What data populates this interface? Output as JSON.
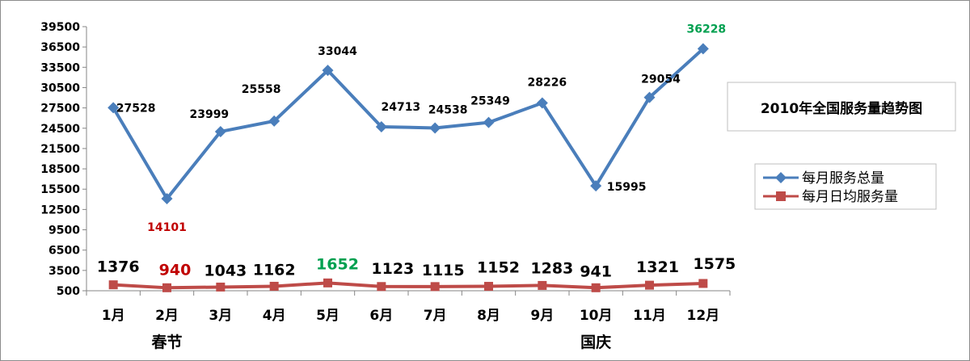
{
  "chart_data": {
    "type": "line",
    "title": "2010年全国服务量趋势图",
    "categories": [
      "1月",
      "2月",
      "3月",
      "4月",
      "5月",
      "6月",
      "7月",
      "8月",
      "9月",
      "10月",
      "11月",
      "12月"
    ],
    "category_notes": {
      "2月": "春节",
      "10月": "国庆"
    },
    "ylim": [
      500,
      39500
    ],
    "yticks": [
      500,
      3500,
      6500,
      9500,
      12500,
      15500,
      18500,
      21500,
      24500,
      27500,
      30500,
      33500,
      36500,
      39500
    ],
    "grid": false,
    "legend_position": "right",
    "series": [
      {
        "name": "每月服务总量",
        "color": "#4a7ebb",
        "marker": "diamond",
        "values": [
          27528,
          14101,
          23999,
          25558,
          33044,
          24713,
          24538,
          25349,
          28226,
          15995,
          29054,
          36228
        ],
        "label_colors": [
          "#000000",
          "#c00000",
          "#000000",
          "#000000",
          "#000000",
          "#000000",
          "#000000",
          "#000000",
          "#000000",
          "#000000",
          "#000000",
          "#00a050"
        ]
      },
      {
        "name": "每月日均服务量",
        "color": "#be4b48",
        "marker": "square",
        "values": [
          1376,
          940,
          1043,
          1162,
          1652,
          1123,
          1115,
          1152,
          1283,
          941,
          1321,
          1575
        ],
        "label_colors": [
          "#000000",
          "#c00000",
          "#000000",
          "#000000",
          "#00a050",
          "#000000",
          "#000000",
          "#000000",
          "#000000",
          "#000000",
          "#000000",
          "#000000"
        ]
      }
    ]
  }
}
